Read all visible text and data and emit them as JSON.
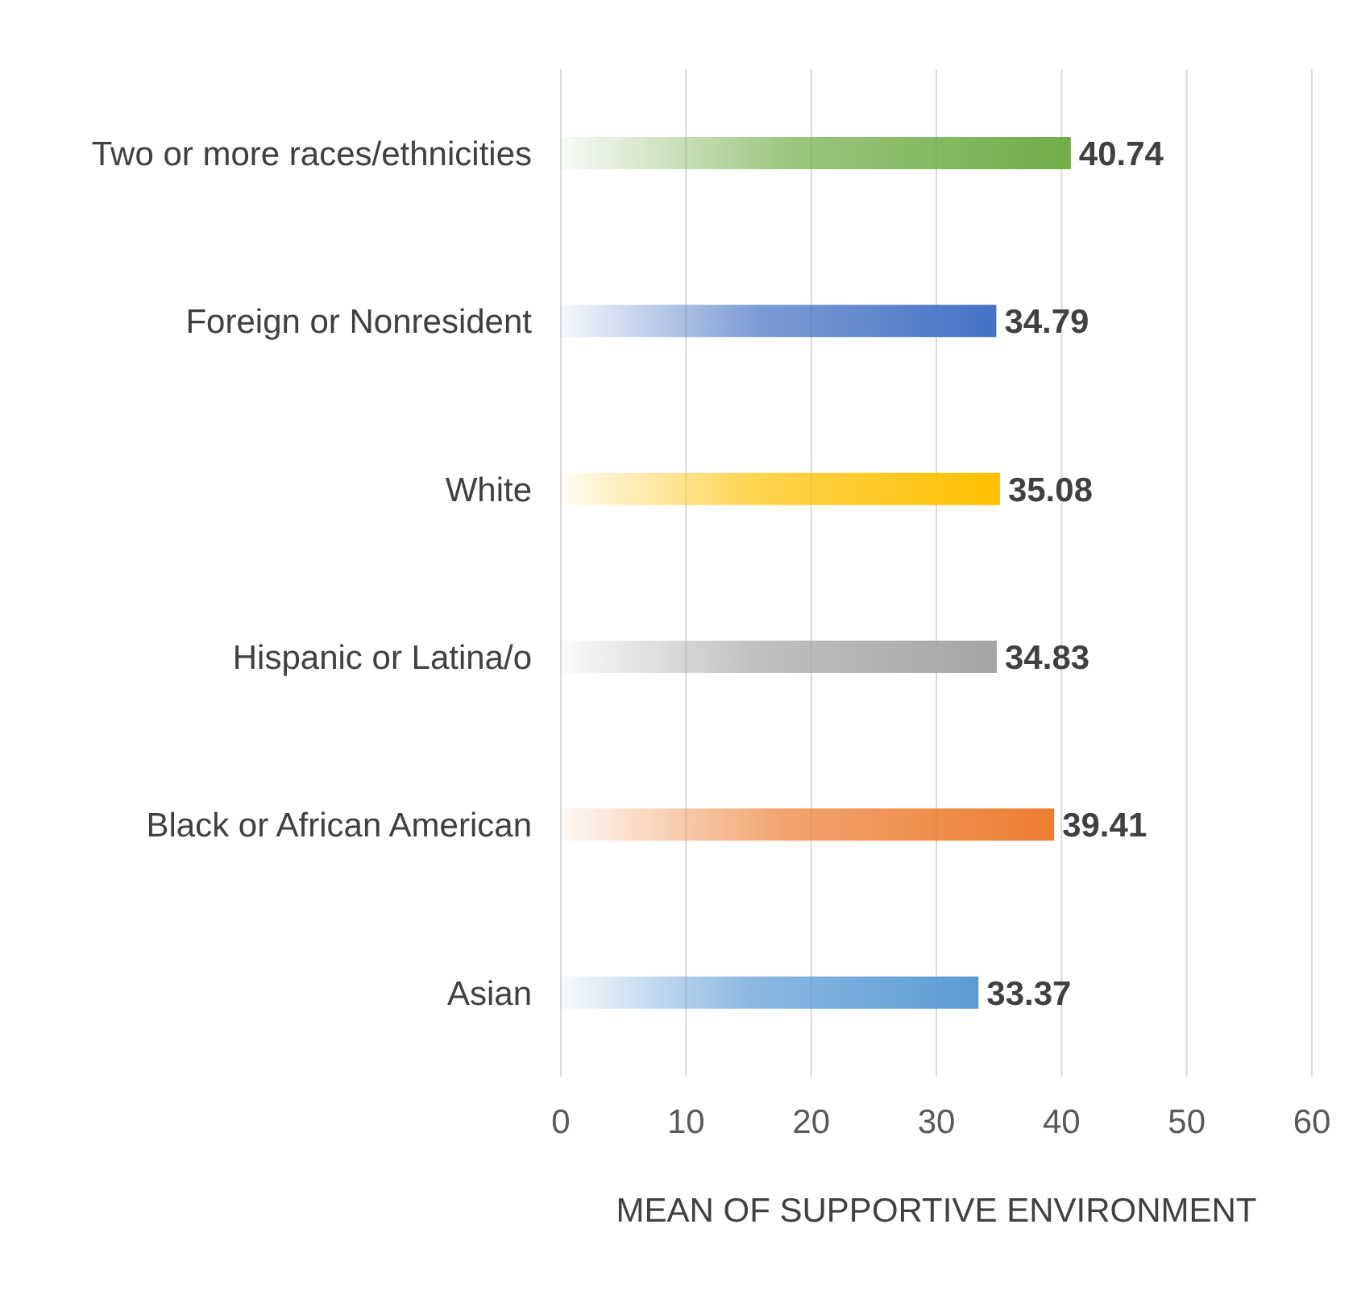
{
  "chart_data": {
    "type": "bar",
    "orientation": "horizontal",
    "xlabel": "MEAN OF SUPPORTIVE ENVIRONMENT",
    "categories": [
      "Two or more races/ethnicities",
      "Foreign or Nonresident",
      "White",
      "Hispanic or Latina/o",
      "Black or African American",
      "Asian"
    ],
    "values": [
      40.74,
      34.79,
      35.08,
      34.83,
      39.41,
      33.37
    ],
    "colors": [
      "#70ad47",
      "#4472c4",
      "#ffc000",
      "#a5a5a5",
      "#ed7d31",
      "#5b9bd5"
    ],
    "xlim": [
      0,
      60
    ],
    "xticks": [
      0,
      10,
      20,
      30,
      40,
      50,
      60
    ],
    "grid": "x",
    "data_labels": true
  }
}
